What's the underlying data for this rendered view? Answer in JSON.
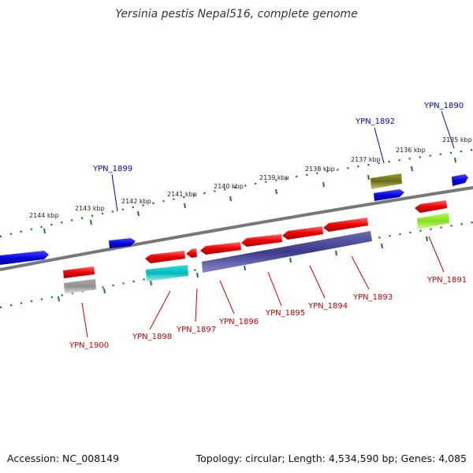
{
  "title": "Yersinia pestis Nepal516, complete genome",
  "footer": {
    "accession": "Accession: NC_008149",
    "summary": "Topology: circular; Length: 4,534,590 bp; Genes: 4,085"
  },
  "colors": {
    "backbone": "#7f7f7f",
    "ticks": "#1f7a1f",
    "forward_gene": "#0000ee",
    "reverse_gene": "#ee0000",
    "forward_label": "#0000cc",
    "reverse_label": "#cc0000"
  },
  "tick_labels": [
    "2135 kbp",
    "2136 kbp",
    "2137 kbp",
    "2138 kbp",
    "2139 kbp",
    "2140 kbp",
    "2141 kbp",
    "2142 kbp",
    "2143 kbp",
    "2144 kbp"
  ],
  "gene_labels": {
    "ypn_1890": "YPN_1890",
    "ypn_1891": "YPN_1891",
    "ypn_1892": "YPN_1892",
    "ypn_1893": "YPN_1893",
    "ypn_1894": "YPN_1894",
    "ypn_1895": "YPN_1895",
    "ypn_1896": "YPN_1896",
    "ypn_1897": "YPN_1897",
    "ypn_1898": "YPN_1898",
    "ypn_1899": "YPN_1899",
    "ypn_1900": "YPN_1900"
  }
}
